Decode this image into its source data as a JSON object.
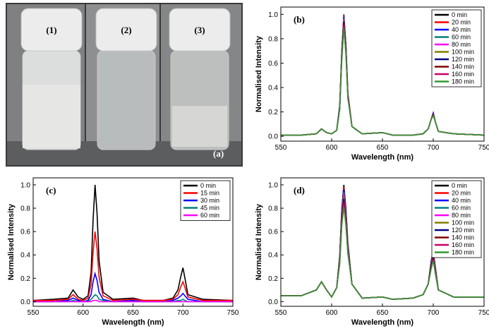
{
  "photo": {
    "labels": [
      "(1)",
      "(2)",
      "(3)"
    ],
    "panel_label": "(a)"
  },
  "chart_data": [
    {
      "type": "line",
      "panel_label": "(b)",
      "xlabel": "Wavelength (nm)",
      "ylabel": "Normalised Intensity",
      "xlim": [
        550,
        750
      ],
      "ylim": [
        -0.04,
        1.06
      ],
      "xticks": [
        550,
        600,
        650,
        700,
        750
      ],
      "yticks": [
        {
          "value": 0,
          "label": "0.0"
        },
        {
          "value": 0.2,
          "label": "0.2"
        },
        {
          "value": 0.4,
          "label": "0.4"
        },
        {
          "value": 0.6,
          "label": "0.6"
        },
        {
          "value": 0.8,
          "label": "0.8"
        },
        {
          "value": 1.0,
          "label": "1.0"
        }
      ],
      "legend": "upper right",
      "x": [
        550,
        570,
        585,
        590,
        595,
        600,
        605,
        608,
        610,
        612,
        614,
        616,
        620,
        630,
        650,
        660,
        680,
        690,
        695,
        698,
        700,
        702,
        705,
        720,
        750
      ],
      "series": [
        {
          "name": "0 min",
          "color": "#000000",
          "values": [
            0.01,
            0.01,
            0.02,
            0.06,
            0.03,
            0.02,
            0.05,
            0.25,
            0.7,
            1.0,
            0.75,
            0.35,
            0.08,
            0.02,
            0.03,
            0.01,
            0.01,
            0.02,
            0.06,
            0.14,
            0.19,
            0.12,
            0.04,
            0.02,
            0.01
          ]
        },
        {
          "name": "20 min",
          "color": "#ff0000",
          "values": [
            0.01,
            0.01,
            0.02,
            0.06,
            0.03,
            0.02,
            0.05,
            0.25,
            0.69,
            0.99,
            0.74,
            0.35,
            0.08,
            0.02,
            0.03,
            0.01,
            0.01,
            0.02,
            0.06,
            0.14,
            0.19,
            0.12,
            0.04,
            0.02,
            0.01
          ]
        },
        {
          "name": "40 min",
          "color": "#0000ff",
          "values": [
            0.01,
            0.01,
            0.02,
            0.06,
            0.03,
            0.02,
            0.05,
            0.25,
            0.69,
            0.98,
            0.74,
            0.34,
            0.08,
            0.02,
            0.03,
            0.01,
            0.01,
            0.02,
            0.06,
            0.14,
            0.19,
            0.12,
            0.04,
            0.02,
            0.01
          ]
        },
        {
          "name": "60 min",
          "color": "#008080",
          "values": [
            0.01,
            0.01,
            0.02,
            0.06,
            0.03,
            0.02,
            0.05,
            0.24,
            0.68,
            0.97,
            0.73,
            0.34,
            0.08,
            0.02,
            0.03,
            0.01,
            0.01,
            0.02,
            0.06,
            0.14,
            0.18,
            0.12,
            0.04,
            0.02,
            0.01
          ]
        },
        {
          "name": "80 min",
          "color": "#ff00ff",
          "values": [
            0.01,
            0.01,
            0.02,
            0.06,
            0.03,
            0.02,
            0.05,
            0.24,
            0.67,
            0.96,
            0.72,
            0.34,
            0.08,
            0.02,
            0.03,
            0.01,
            0.01,
            0.02,
            0.06,
            0.14,
            0.18,
            0.12,
            0.04,
            0.02,
            0.01
          ]
        },
        {
          "name": "100 min",
          "color": "#808000",
          "values": [
            0.01,
            0.01,
            0.02,
            0.06,
            0.03,
            0.02,
            0.05,
            0.24,
            0.67,
            0.95,
            0.71,
            0.33,
            0.08,
            0.02,
            0.03,
            0.01,
            0.01,
            0.02,
            0.06,
            0.14,
            0.18,
            0.12,
            0.04,
            0.02,
            0.01
          ]
        },
        {
          "name": "120 min",
          "color": "#000080",
          "values": [
            0.01,
            0.01,
            0.02,
            0.06,
            0.03,
            0.02,
            0.05,
            0.24,
            0.66,
            0.94,
            0.71,
            0.33,
            0.08,
            0.02,
            0.03,
            0.01,
            0.01,
            0.02,
            0.06,
            0.14,
            0.18,
            0.12,
            0.04,
            0.02,
            0.01
          ]
        },
        {
          "name": "140 min",
          "color": "#800000",
          "values": [
            0.01,
            0.01,
            0.02,
            0.06,
            0.03,
            0.02,
            0.05,
            0.23,
            0.65,
            0.93,
            0.7,
            0.33,
            0.08,
            0.02,
            0.03,
            0.01,
            0.01,
            0.02,
            0.06,
            0.14,
            0.18,
            0.12,
            0.04,
            0.02,
            0.01
          ]
        },
        {
          "name": "160 min",
          "color": "#cc0066",
          "values": [
            0.01,
            0.01,
            0.02,
            0.06,
            0.03,
            0.02,
            0.05,
            0.23,
            0.64,
            0.91,
            0.68,
            0.32,
            0.08,
            0.02,
            0.03,
            0.01,
            0.01,
            0.02,
            0.06,
            0.14,
            0.17,
            0.12,
            0.04,
            0.02,
            0.01
          ]
        },
        {
          "name": "180 min",
          "color": "#339933",
          "values": [
            0.01,
            0.01,
            0.02,
            0.06,
            0.03,
            0.02,
            0.05,
            0.22,
            0.62,
            0.89,
            0.67,
            0.31,
            0.08,
            0.02,
            0.03,
            0.01,
            0.01,
            0.02,
            0.06,
            0.14,
            0.17,
            0.12,
            0.04,
            0.02,
            0.01
          ]
        }
      ]
    },
    {
      "type": "line",
      "panel_label": "(c)",
      "xlabel": "Wavelength (nm)",
      "ylabel": "Normalised Intensity",
      "xlim": [
        550,
        750
      ],
      "ylim": [
        -0.04,
        1.06
      ],
      "xticks": [
        550,
        600,
        650,
        700,
        750
      ],
      "yticks": [
        {
          "value": 0,
          "label": "0.0"
        },
        {
          "value": 0.2,
          "label": "0.2"
        },
        {
          "value": 0.4,
          "label": "0.4"
        },
        {
          "value": 0.6,
          "label": "0.6"
        },
        {
          "value": 0.8,
          "label": "0.8"
        },
        {
          "value": 1.0,
          "label": "1.0"
        }
      ],
      "legend": "upper right",
      "x": [
        550,
        570,
        585,
        590,
        595,
        600,
        605,
        608,
        610,
        612,
        614,
        616,
        620,
        630,
        650,
        660,
        680,
        690,
        695,
        698,
        700,
        702,
        705,
        720,
        750
      ],
      "series": [
        {
          "name": "0 min",
          "color": "#000000",
          "values": [
            0.01,
            0.02,
            0.03,
            0.1,
            0.04,
            0.02,
            0.05,
            0.25,
            0.7,
            1.0,
            0.75,
            0.35,
            0.08,
            0.02,
            0.03,
            0.01,
            0.01,
            0.03,
            0.1,
            0.22,
            0.29,
            0.2,
            0.06,
            0.02,
            0.01
          ]
        },
        {
          "name": "15 min",
          "color": "#ff0000",
          "values": [
            0.01,
            0.01,
            0.02,
            0.06,
            0.02,
            0.01,
            0.03,
            0.15,
            0.42,
            0.6,
            0.45,
            0.21,
            0.05,
            0.01,
            0.02,
            0.01,
            0.01,
            0.02,
            0.06,
            0.13,
            0.17,
            0.12,
            0.04,
            0.01,
            0.01
          ]
        },
        {
          "name": "30 min",
          "color": "#0000ff",
          "values": [
            0,
            0,
            0.01,
            0.03,
            0.01,
            0,
            0.01,
            0.06,
            0.17,
            0.24,
            0.18,
            0.08,
            0.02,
            0,
            0.01,
            0,
            0,
            0.01,
            0.03,
            0.05,
            0.07,
            0.05,
            0.02,
            0,
            0
          ]
        },
        {
          "name": "45 min",
          "color": "#008080",
          "values": [
            0,
            0,
            0,
            0.01,
            0,
            0,
            0,
            0.02,
            0.04,
            0.06,
            0.05,
            0.02,
            0.01,
            0,
            0,
            0,
            0,
            0,
            0.01,
            0.01,
            0.02,
            0.01,
            0,
            0,
            0
          ]
        },
        {
          "name": "60 min",
          "color": "#ff00ff",
          "values": [
            0,
            0,
            0,
            0,
            0,
            0,
            0,
            0,
            0.01,
            0.01,
            0.01,
            0,
            0,
            0,
            0,
            0,
            0,
            0,
            0,
            0,
            0,
            0,
            0,
            0,
            0
          ]
        }
      ]
    },
    {
      "type": "line",
      "panel_label": "(d)",
      "xlabel": "Wavelength (nm)",
      "ylabel": "Normalised Intensity",
      "xlim": [
        550,
        750
      ],
      "ylim": [
        -0.04,
        1.06
      ],
      "xticks": [
        550,
        600,
        650,
        700,
        750
      ],
      "yticks": [
        {
          "value": 0,
          "label": "0.0"
        },
        {
          "value": 0.2,
          "label": "0.2"
        },
        {
          "value": 0.4,
          "label": "0.4"
        },
        {
          "value": 0.6,
          "label": "0.6"
        },
        {
          "value": 0.8,
          "label": "0.8"
        },
        {
          "value": 1.0,
          "label": "1.0"
        }
      ],
      "legend": "upper right",
      "x": [
        550,
        570,
        585,
        590,
        595,
        600,
        605,
        608,
        610,
        612,
        614,
        616,
        620,
        630,
        650,
        660,
        680,
        690,
        695,
        698,
        700,
        702,
        705,
        720,
        750
      ],
      "series": [
        {
          "name": "0 min",
          "color": "#000000",
          "values": [
            0.05,
            0.05,
            0.1,
            0.17,
            0.1,
            0.04,
            0.12,
            0.4,
            0.8,
            1.0,
            0.8,
            0.5,
            0.15,
            0.03,
            0.04,
            0.02,
            0.03,
            0.06,
            0.15,
            0.35,
            0.43,
            0.3,
            0.1,
            0.04,
            0.04
          ]
        },
        {
          "name": "20 min",
          "color": "#ff0000",
          "values": [
            0.05,
            0.05,
            0.1,
            0.17,
            0.1,
            0.04,
            0.12,
            0.39,
            0.78,
            0.98,
            0.78,
            0.49,
            0.15,
            0.03,
            0.04,
            0.02,
            0.03,
            0.06,
            0.15,
            0.34,
            0.42,
            0.29,
            0.1,
            0.04,
            0.04
          ]
        },
        {
          "name": "40 min",
          "color": "#0000ff",
          "values": [
            0.05,
            0.05,
            0.1,
            0.17,
            0.1,
            0.04,
            0.12,
            0.38,
            0.77,
            0.96,
            0.77,
            0.48,
            0.15,
            0.03,
            0.04,
            0.02,
            0.03,
            0.06,
            0.15,
            0.34,
            0.41,
            0.29,
            0.1,
            0.04,
            0.04
          ]
        },
        {
          "name": "60 min",
          "color": "#008080",
          "values": [
            0.05,
            0.05,
            0.1,
            0.17,
            0.1,
            0.04,
            0.12,
            0.38,
            0.75,
            0.94,
            0.75,
            0.47,
            0.15,
            0.03,
            0.04,
            0.02,
            0.03,
            0.06,
            0.15,
            0.33,
            0.4,
            0.28,
            0.1,
            0.04,
            0.04
          ]
        },
        {
          "name": "80 min",
          "color": "#ff00ff",
          "values": [
            0.05,
            0.05,
            0.1,
            0.17,
            0.1,
            0.04,
            0.12,
            0.37,
            0.74,
            0.92,
            0.74,
            0.46,
            0.15,
            0.03,
            0.04,
            0.02,
            0.03,
            0.06,
            0.15,
            0.32,
            0.4,
            0.28,
            0.1,
            0.04,
            0.04
          ]
        },
        {
          "name": "100 min",
          "color": "#808000",
          "values": [
            0.05,
            0.05,
            0.1,
            0.17,
            0.1,
            0.04,
            0.12,
            0.36,
            0.72,
            0.9,
            0.72,
            0.45,
            0.15,
            0.03,
            0.04,
            0.02,
            0.03,
            0.06,
            0.15,
            0.32,
            0.39,
            0.27,
            0.1,
            0.04,
            0.04
          ]
        },
        {
          "name": "120 min",
          "color": "#000080",
          "values": [
            0.05,
            0.05,
            0.1,
            0.17,
            0.1,
            0.04,
            0.12,
            0.35,
            0.7,
            0.88,
            0.7,
            0.44,
            0.15,
            0.03,
            0.04,
            0.02,
            0.03,
            0.06,
            0.15,
            0.31,
            0.38,
            0.26,
            0.1,
            0.04,
            0.04
          ]
        },
        {
          "name": "140 min",
          "color": "#800000",
          "values": [
            0.05,
            0.05,
            0.1,
            0.17,
            0.1,
            0.04,
            0.12,
            0.34,
            0.69,
            0.86,
            0.69,
            0.43,
            0.15,
            0.03,
            0.04,
            0.02,
            0.03,
            0.06,
            0.15,
            0.3,
            0.37,
            0.26,
            0.1,
            0.04,
            0.04
          ]
        },
        {
          "name": "160 min",
          "color": "#cc0066",
          "values": [
            0.05,
            0.05,
            0.1,
            0.17,
            0.1,
            0.04,
            0.12,
            0.34,
            0.67,
            0.84,
            0.67,
            0.42,
            0.15,
            0.03,
            0.04,
            0.02,
            0.03,
            0.06,
            0.15,
            0.29,
            0.36,
            0.25,
            0.1,
            0.04,
            0.04
          ]
        },
        {
          "name": "180 min",
          "color": "#339933",
          "values": [
            0.05,
            0.05,
            0.1,
            0.17,
            0.1,
            0.04,
            0.12,
            0.32,
            0.65,
            0.81,
            0.65,
            0.41,
            0.15,
            0.03,
            0.04,
            0.02,
            0.03,
            0.06,
            0.15,
            0.28,
            0.35,
            0.24,
            0.1,
            0.04,
            0.04
          ]
        }
      ]
    }
  ]
}
